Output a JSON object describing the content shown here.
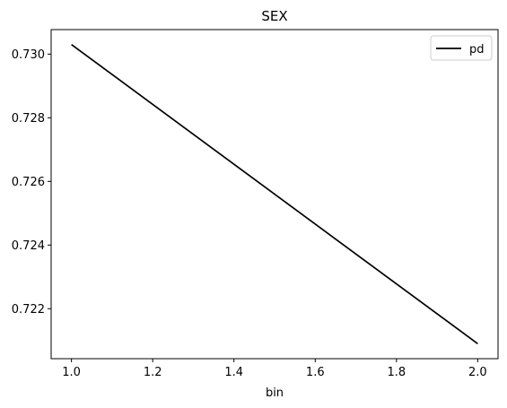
{
  "chart_data": {
    "type": "line",
    "title": "SEX",
    "xlabel": "bin",
    "ylabel": "",
    "xlim": [
      0.95,
      2.05
    ],
    "ylim": [
      0.72043,
      0.73077
    ],
    "x_ticks": [
      1.0,
      1.2,
      1.4,
      1.6,
      1.8,
      2.0
    ],
    "x_tick_labels": [
      "1.0",
      "1.2",
      "1.4",
      "1.6",
      "1.8",
      "2.0"
    ],
    "y_ticks": [
      0.722,
      0.724,
      0.726,
      0.728,
      0.73
    ],
    "y_tick_labels": [
      "0.722",
      "0.724",
      "0.726",
      "0.728",
      "0.730"
    ],
    "grid": false,
    "legend_position": "top-right",
    "series": [
      {
        "name": "pd",
        "color": "#000000",
        "x": [
          1.0,
          2.0
        ],
        "y": [
          0.7303,
          0.7209
        ]
      }
    ]
  }
}
